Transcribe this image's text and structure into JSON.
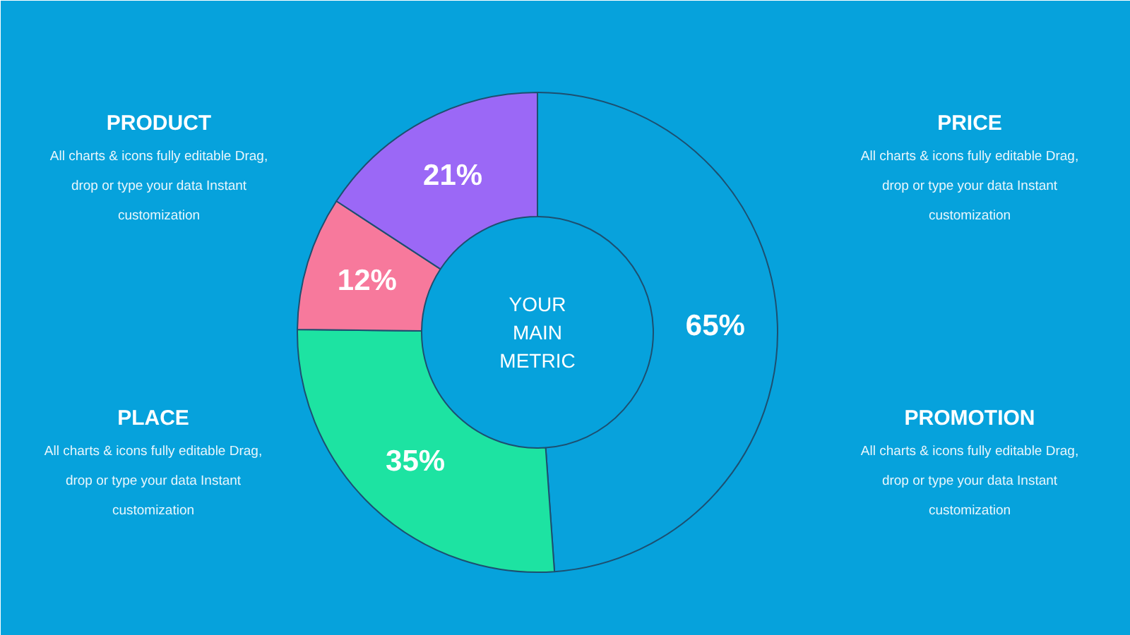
{
  "chart_data": {
    "type": "donut",
    "categories": [
      null,
      null,
      null,
      null
    ],
    "values": [
      65,
      35,
      12,
      21
    ],
    "colors": [
      "#08a2dc",
      "#1de3a2",
      "#f7799c",
      "#9b68f6"
    ],
    "value_labels": [
      "65%",
      "35%",
      "12%",
      "21%"
    ],
    "annotations": [
      "YOUR\nMAIN\nMETRIC",
      "PRODUCT",
      "All charts & icons fully editable Drag,\ndrop or type your data Instant\ncustomization",
      "PRICE",
      "All charts & icons fully editable Drag,\ndrop or type your data Instant\ncustomization",
      "PLACE",
      "All charts & icons fully editable Drag,\ndrop or type your data Instant\ncustomization",
      "PROMOTION",
      "All charts & icons fully editable Drag,\ndrop or type your data Instant\ncustomization"
    ]
  }
}
